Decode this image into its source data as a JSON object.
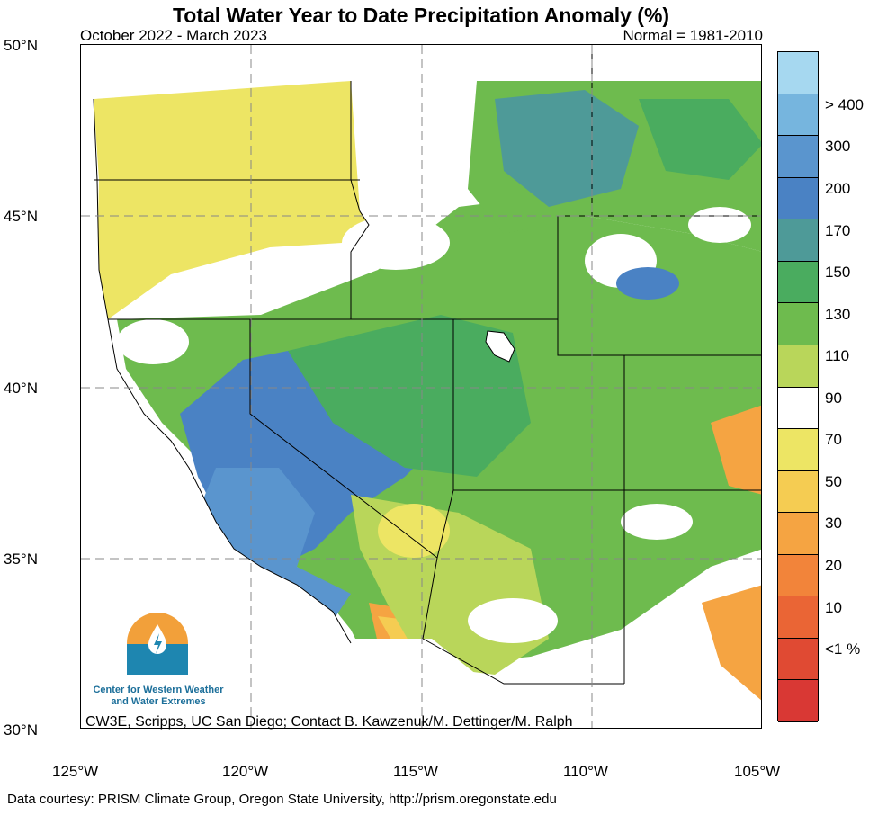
{
  "title": "Total Water Year to Date Precipitation Anomaly (%)",
  "subtitle_left": "October 2022 - March 2023",
  "subtitle_right": "Normal = 1981-2010",
  "y_axis_labels": [
    "50°N",
    "45°N",
    "40°N",
    "35°N",
    "30°N"
  ],
  "x_axis_labels": [
    "125°W",
    "120°W",
    "115°W",
    "110°W",
    "105°W"
  ],
  "credit_text": "CW3E, Scripps, UC San Diego; Contact B. Kawzenuk/M. Dettinger/M. Ralph",
  "footer_text": "Data courtesy: PRISM Climate Group, Oregon State University, http://prism.oregonstate.edu",
  "logo": {
    "line1": "Center for Western Weather",
    "line2": "and Water Extremes"
  },
  "legend": {
    "labels": [
      "> 400",
      "300",
      "200",
      "170",
      "150",
      "130",
      "110",
      "90",
      "70",
      "50",
      "30",
      "20",
      "10",
      "<1 %"
    ],
    "colors": [
      "#a6d8f0",
      "#76b5de",
      "#5a95ce",
      "#4a82c4",
      "#4e9a98",
      "#4aac5f",
      "#6ebb4e",
      "#b9d65a",
      "#ffffff",
      "#ede564",
      "#f5cc52",
      "#f5a442",
      "#f2843a",
      "#ea6535",
      "#e04a33",
      "#d93834"
    ]
  },
  "colors": {
    "water": "#ffffff",
    "border": "#000000",
    "grid": "#888888"
  }
}
